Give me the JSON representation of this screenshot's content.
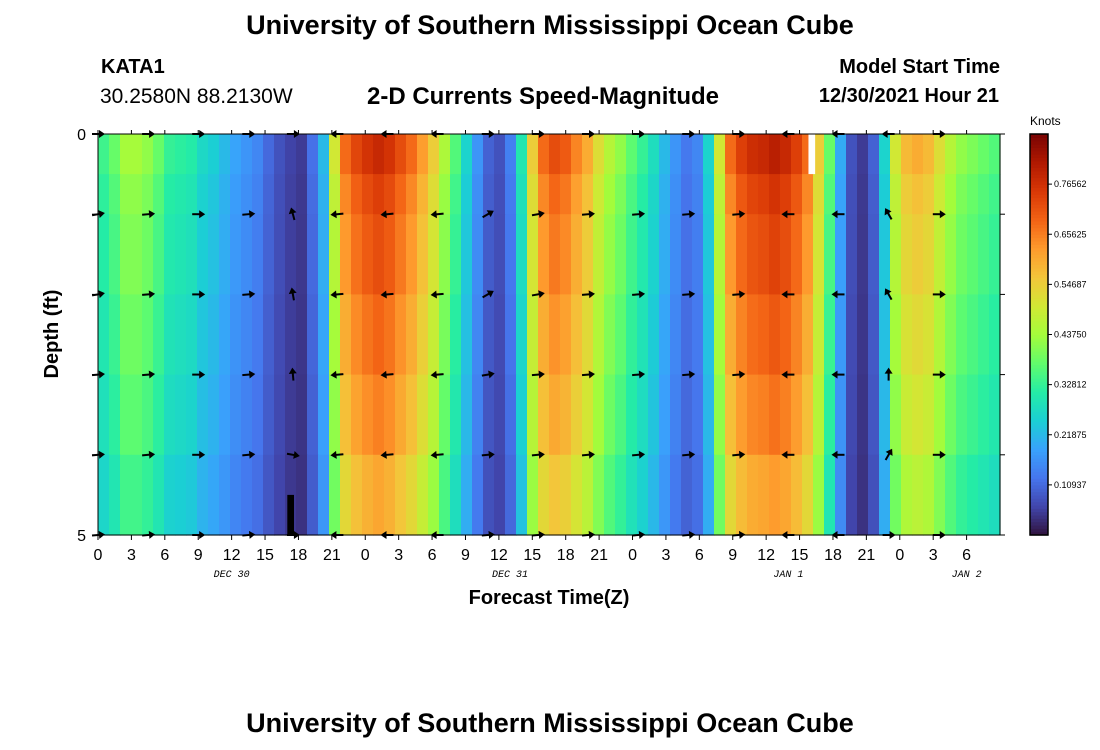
{
  "header": {
    "title": "University of Southern Mississippi Ocean Cube",
    "station_id": "KATA1",
    "coordinates": "30.2580N  88.2130W",
    "plot_title": "2-D Currents Speed-Magnitude",
    "model_start_label": "Model Start Time",
    "model_start_value": "12/30/2021 Hour 21"
  },
  "footer": {
    "title": "University of Southern Mississippi Ocean Cube"
  },
  "colors": {
    "colormap": [
      "#30123b",
      "#4145ab",
      "#4675ed",
      "#39a2fc",
      "#1bcfd4",
      "#24eca6",
      "#61fc6c",
      "#a4fc3b",
      "#d1e834",
      "#f3c63a",
      "#fe9b2d",
      "#f36315",
      "#d93806",
      "#b11901",
      "#7a0403"
    ]
  },
  "chart_data": {
    "type": "heatmap",
    "title": "2-D Currents Speed-Magnitude",
    "xlabel": "Forecast Time(Z)",
    "ylabel": "Depth (ft)",
    "x_range_hours": [
      0,
      81
    ],
    "x_ticks": [
      {
        "hour": 0,
        "label": "0"
      },
      {
        "hour": 3,
        "label": "3"
      },
      {
        "hour": 6,
        "label": "6"
      },
      {
        "hour": 9,
        "label": "9"
      },
      {
        "hour": 12,
        "label": "12"
      },
      {
        "hour": 15,
        "label": "15"
      },
      {
        "hour": 18,
        "label": "18"
      },
      {
        "hour": 21,
        "label": "21"
      },
      {
        "hour": 24,
        "label": "0"
      },
      {
        "hour": 27,
        "label": "3"
      },
      {
        "hour": 30,
        "label": "6"
      },
      {
        "hour": 33,
        "label": "9"
      },
      {
        "hour": 36,
        "label": "12"
      },
      {
        "hour": 39,
        "label": "15"
      },
      {
        "hour": 42,
        "label": "18"
      },
      {
        "hour": 45,
        "label": "21"
      },
      {
        "hour": 48,
        "label": "0"
      },
      {
        "hour": 51,
        "label": "3"
      },
      {
        "hour": 54,
        "label": "6"
      },
      {
        "hour": 57,
        "label": "9"
      },
      {
        "hour": 60,
        "label": "12"
      },
      {
        "hour": 63,
        "label": "15"
      },
      {
        "hour": 66,
        "label": "18"
      },
      {
        "hour": 69,
        "label": "21"
      },
      {
        "hour": 72,
        "label": "0"
      },
      {
        "hour": 75,
        "label": "3"
      },
      {
        "hour": 78,
        "label": "6"
      }
    ],
    "date_labels": [
      {
        "hour": 12,
        "label": "DEC 30"
      },
      {
        "hour": 37,
        "label": "DEC 31"
      },
      {
        "hour": 62,
        "label": "JAN 1"
      },
      {
        "hour": 78,
        "label": "JAN 2"
      }
    ],
    "y_range_ft": [
      0,
      5
    ],
    "y_ticks": [
      {
        "value": 0,
        "label": "0"
      },
      {
        "value": 5,
        "label": "5"
      }
    ],
    "depth_levels_ft": [
      0.5,
      1.0,
      2.0,
      3.0,
      4.0,
      5.0
    ],
    "surface_speed_knots": [
      0.34,
      0.38,
      0.44,
      0.44,
      0.42,
      0.38,
      0.33,
      0.32,
      0.31,
      0.27,
      0.25,
      0.22,
      0.19,
      0.17,
      0.15,
      0.11,
      0.08,
      0.06,
      0.05,
      0.12,
      0.22,
      0.5,
      0.68,
      0.73,
      0.76,
      0.78,
      0.76,
      0.72,
      0.68,
      0.62,
      0.55,
      0.45,
      0.36,
      0.26,
      0.17,
      0.1,
      0.08,
      0.14,
      0.3,
      0.55,
      0.68,
      0.72,
      0.7,
      0.65,
      0.6,
      0.52,
      0.46,
      0.42,
      0.37,
      0.33,
      0.28,
      0.22,
      0.17,
      0.13,
      0.15,
      0.26,
      0.5,
      0.68,
      0.74,
      0.77,
      0.78,
      0.8,
      0.78,
      0.74,
      0.68,
      0.55,
      0.38,
      0.2,
      0.08,
      0.05,
      0.1,
      0.26,
      0.5,
      0.58,
      0.6,
      0.58,
      0.52,
      0.46,
      0.42,
      0.4,
      0.38,
      0.36
    ],
    "depth_factors": [
      1.0,
      0.95,
      0.92,
      0.88,
      0.84,
      0.78
    ],
    "masked_cells": [
      {
        "hour_start": 63.8,
        "hour_end": 64.4,
        "depth_start_ft": 0,
        "depth_end_ft": 0.5,
        "color": "#ffffff"
      },
      {
        "hour_start": 17.0,
        "hour_end": 17.6,
        "depth_start_ft": 4.5,
        "depth_end_ft": 5,
        "color": "#000000"
      }
    ],
    "vector_times_hours": [
      0,
      4.5,
      9,
      13.5,
      17.5,
      21.5,
      26,
      30.5,
      35,
      39.5,
      44,
      48.5,
      53,
      57.5,
      62,
      66.5,
      71,
      75.5
    ],
    "vector_depths_ft": [
      0,
      1,
      2,
      3,
      4,
      5
    ],
    "vector_directions_deg": [
      [
        90,
        90,
        90,
        90,
        90,
        270,
        270,
        270,
        90,
        90,
        90,
        90,
        90,
        90,
        270,
        270,
        270,
        90
      ],
      [
        80,
        85,
        90,
        85,
        345,
        265,
        265,
        265,
        60,
        80,
        85,
        85,
        85,
        85,
        270,
        270,
        330,
        90
      ],
      [
        80,
        85,
        90,
        85,
        350,
        265,
        265,
        265,
        60,
        80,
        85,
        85,
        85,
        85,
        270,
        270,
        330,
        90
      ],
      [
        85,
        85,
        90,
        85,
        355,
        265,
        265,
        265,
        80,
        85,
        85,
        85,
        85,
        85,
        270,
        270,
        0,
        90
      ],
      [
        85,
        85,
        90,
        85,
        100,
        265,
        265,
        265,
        85,
        85,
        85,
        85,
        85,
        85,
        270,
        270,
        30,
        90
      ],
      [
        85,
        85,
        90,
        85,
        90,
        270,
        270,
        270,
        85,
        85,
        85,
        85,
        85,
        85,
        270,
        270,
        90,
        90
      ]
    ],
    "colorbar": {
      "title": "Knots",
      "range": [
        0,
        0.875
      ],
      "tick_values": [
        0.109375,
        0.21875,
        0.328125,
        0.4375,
        0.546875,
        0.65625,
        0.765625
      ],
      "tick_labels": [
        "0.10937",
        "0.21875",
        "0.32812",
        "0.43750",
        "0.54687",
        "0.65625",
        "0.76562"
      ]
    }
  }
}
